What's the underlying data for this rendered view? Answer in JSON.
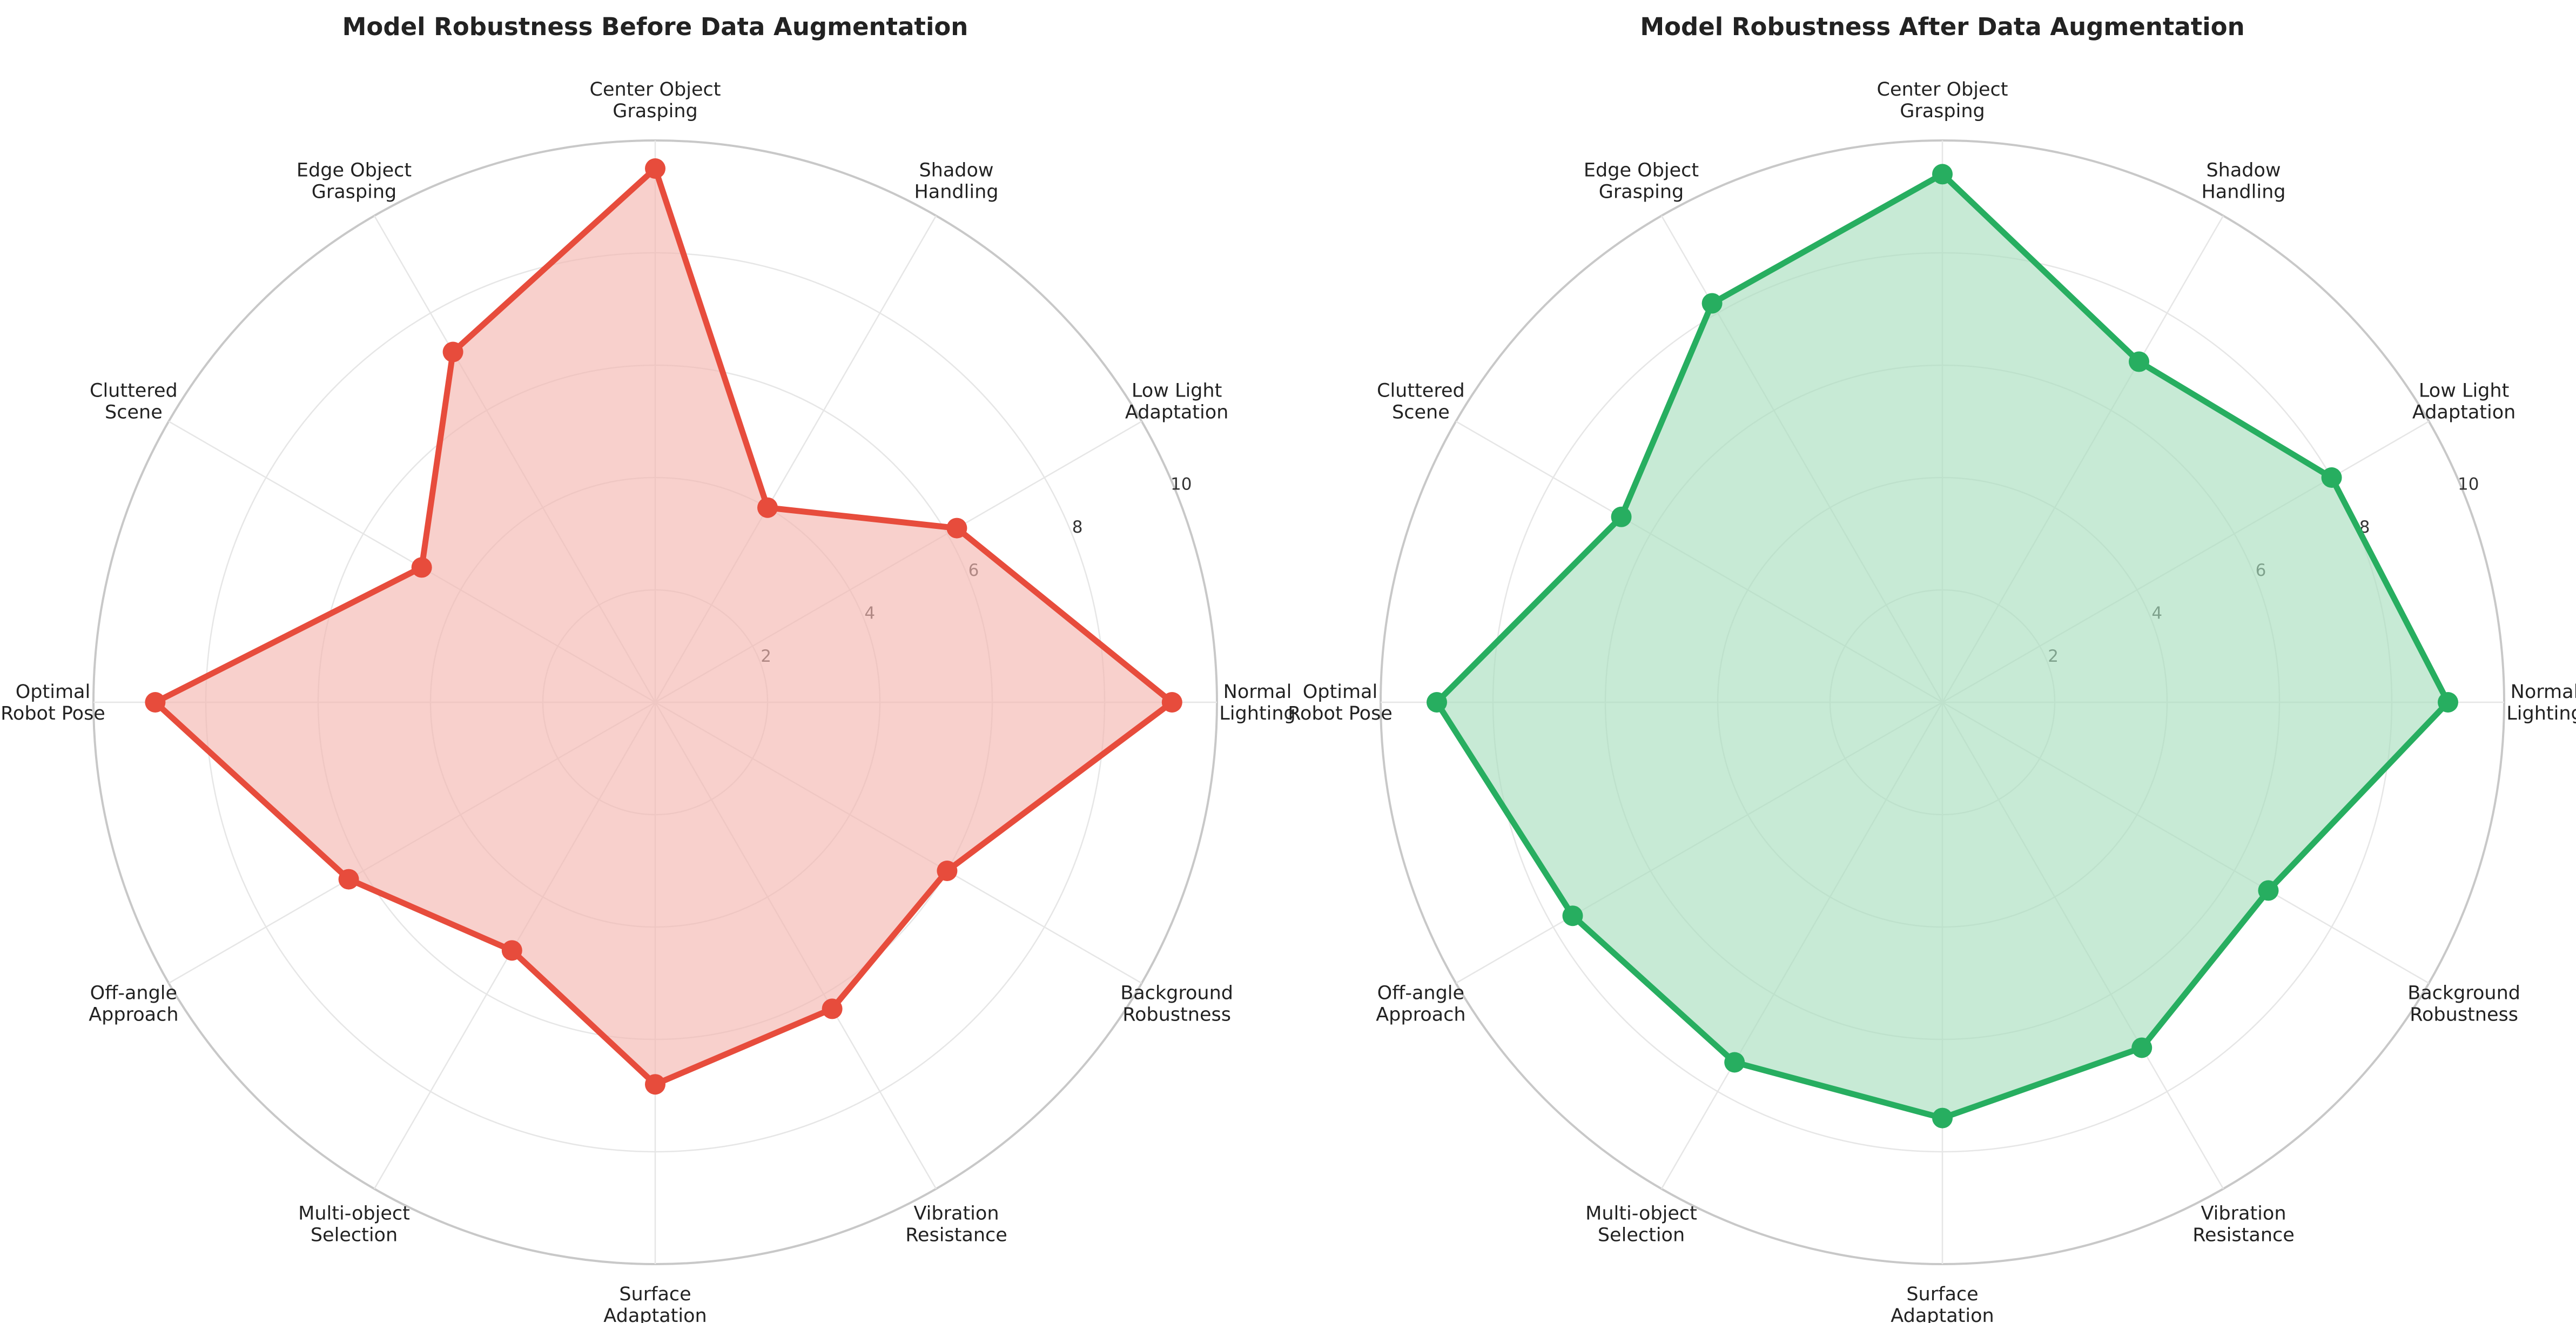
{
  "chart_data": [
    {
      "type": "radar",
      "title": "Model Robustness Before Data Augmentation",
      "categories": [
        "Normal\nLighting",
        "Low Light\nAdaptation",
        "Shadow\nHandling",
        "Center Object\nGrasping",
        "Edge Object\nGrasping",
        "Cluttered\nScene",
        "Optimal\nRobot Pose",
        "Off-angle\nApproach",
        "Multi-object\nSelection",
        "Surface\nAdaptation",
        "Vibration\nResistance",
        "Background\nRobustness"
      ],
      "rticks": [
        2,
        4,
        6,
        8,
        10
      ],
      "rlim": [
        0,
        10
      ],
      "series": [
        {
          "values": [
            9.2,
            6.2,
            4.0,
            9.5,
            7.2,
            4.8,
            8.9,
            6.3,
            5.1,
            6.8,
            6.3,
            6.0
          ]
        }
      ],
      "color": "#e74c3c",
      "fill_color": "#f5b7b1"
    },
    {
      "type": "radar",
      "title": "Model Robustness After Data Augmentation",
      "categories": [
        "Normal\nLighting",
        "Low Light\nAdaptation",
        "Shadow\nHandling",
        "Center Object\nGrasping",
        "Edge Object\nGrasping",
        "Cluttered\nScene",
        "Optimal\nRobot Pose",
        "Off-angle\nApproach",
        "Multi-object\nSelection",
        "Surface\nAdaptation",
        "Vibration\nResistance",
        "Background\nRobustness"
      ],
      "rticks": [
        2,
        4,
        6,
        8,
        10
      ],
      "rlim": [
        0,
        10
      ],
      "series": [
        {
          "values": [
            9.0,
            8.0,
            7.0,
            9.4,
            8.2,
            6.6,
            9.0,
            7.6,
            7.4,
            7.4,
            7.1,
            6.7
          ]
        }
      ],
      "color": "#27ae60",
      "fill_color": "#a9dfbf"
    }
  ]
}
